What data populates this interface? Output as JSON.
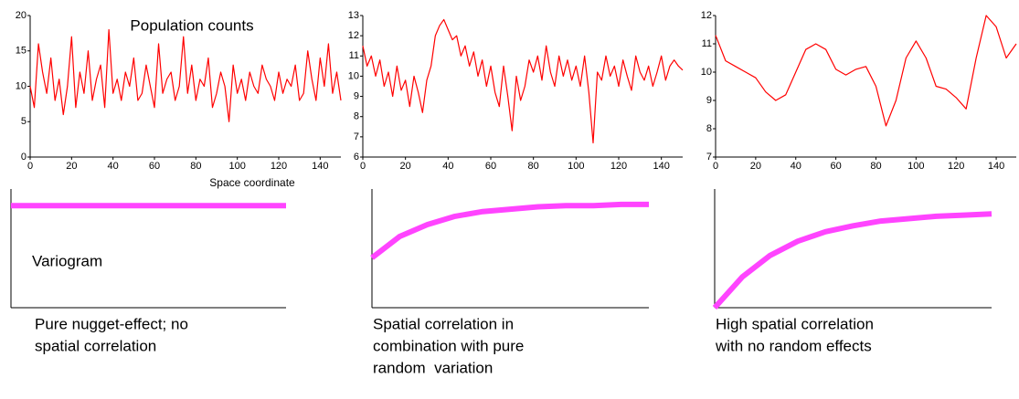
{
  "chart_data": [
    {
      "type": "line",
      "title": "Population counts",
      "xlabel": "Space coordinate",
      "color": "#ff0000",
      "x": [
        0,
        2,
        4,
        6,
        8,
        10,
        12,
        14,
        16,
        18,
        20,
        22,
        24,
        26,
        28,
        30,
        32,
        34,
        36,
        38,
        40,
        42,
        44,
        46,
        48,
        50,
        52,
        54,
        56,
        58,
        60,
        62,
        64,
        66,
        68,
        70,
        72,
        74,
        76,
        78,
        80,
        82,
        84,
        86,
        88,
        90,
        92,
        94,
        96,
        98,
        100,
        102,
        104,
        106,
        108,
        110,
        112,
        114,
        116,
        118,
        120,
        122,
        124,
        126,
        128,
        130,
        132,
        134,
        136,
        138,
        140,
        142,
        144,
        146,
        148,
        150
      ],
      "values": [
        10,
        7,
        16,
        12,
        9,
        14,
        8,
        11,
        6,
        10,
        17,
        7,
        12,
        9,
        15,
        8,
        11,
        13,
        7,
        18,
        9,
        11,
        8,
        12,
        10,
        14,
        8,
        9,
        13,
        10,
        7,
        16,
        9,
        11,
        12,
        8,
        10,
        17,
        9,
        13,
        8,
        11,
        10,
        14,
        7,
        9,
        12,
        10,
        5,
        13,
        9,
        11,
        8,
        12,
        10,
        9,
        13,
        11,
        10,
        8,
        12,
        9,
        11,
        10,
        13,
        8,
        9,
        15,
        11,
        8,
        14,
        10,
        16,
        9,
        12,
        8
      ],
      "xlim": [
        0,
        150
      ],
      "xticks": [
        0,
        20,
        40,
        60,
        80,
        100,
        120,
        140
      ],
      "ylim": [
        0,
        20
      ],
      "yticks": [
        0,
        5,
        10,
        15,
        20
      ]
    },
    {
      "type": "line",
      "color": "#ff0000",
      "x": [
        0,
        2,
        4,
        6,
        8,
        10,
        12,
        14,
        16,
        18,
        20,
        22,
        24,
        26,
        28,
        30,
        32,
        34,
        36,
        38,
        40,
        42,
        44,
        46,
        48,
        50,
        52,
        54,
        56,
        58,
        60,
        62,
        64,
        66,
        68,
        70,
        72,
        74,
        76,
        78,
        80,
        82,
        84,
        86,
        88,
        90,
        92,
        94,
        96,
        98,
        100,
        102,
        104,
        106,
        108,
        110,
        112,
        114,
        116,
        118,
        120,
        122,
        124,
        126,
        128,
        130,
        132,
        134,
        136,
        138,
        140,
        142,
        144,
        146,
        148,
        150
      ],
      "values": [
        11.5,
        10.5,
        11,
        10,
        10.8,
        9.5,
        10.2,
        9,
        10.5,
        9.3,
        9.8,
        8.5,
        10,
        9.2,
        8.2,
        9.8,
        10.5,
        12,
        12.5,
        12.8,
        12.3,
        11.8,
        12,
        11,
        11.5,
        10.5,
        11.2,
        10,
        10.8,
        9.5,
        10.5,
        9.2,
        8.5,
        10.5,
        9,
        7.3,
        10,
        8.8,
        9.5,
        10.8,
        10.2,
        11,
        9.8,
        11.5,
        10.2,
        9.5,
        11,
        10,
        10.8,
        9.8,
        10.5,
        9.5,
        11,
        9.2,
        6.7,
        10.2,
        9.8,
        11,
        10,
        10.5,
        9.5,
        10.8,
        10,
        9.3,
        11,
        10.2,
        9.8,
        10.5,
        9.5,
        10.2,
        11,
        9.8,
        10.5,
        10.8,
        10.5,
        10.3
      ],
      "xlim": [
        0,
        150
      ],
      "xticks": [
        0,
        20,
        40,
        60,
        80,
        100,
        120,
        140
      ],
      "ylim": [
        6,
        13
      ],
      "yticks": [
        6,
        7,
        8,
        9,
        10,
        11,
        12,
        13
      ]
    },
    {
      "type": "line",
      "color": "#ff0000",
      "x": [
        0,
        5,
        10,
        15,
        20,
        25,
        30,
        35,
        40,
        45,
        50,
        55,
        60,
        65,
        70,
        75,
        80,
        85,
        90,
        95,
        100,
        105,
        110,
        115,
        120,
        125,
        130,
        135,
        140,
        145,
        150
      ],
      "values": [
        11.3,
        10.4,
        10.2,
        10,
        9.8,
        9.3,
        9,
        9.2,
        10,
        10.8,
        11,
        10.8,
        10.1,
        9.9,
        10.1,
        10.2,
        9.5,
        8.1,
        9,
        10.5,
        11.1,
        10.5,
        9.5,
        9.4,
        9.1,
        8.7,
        10.5,
        12,
        11.6,
        10.5,
        11
      ],
      "xlim": [
        0,
        150
      ],
      "xticks": [
        0,
        20,
        40,
        60,
        80,
        100,
        120,
        140
      ],
      "ylim": [
        7,
        12
      ],
      "yticks": [
        7,
        8,
        9,
        10,
        11,
        12
      ]
    },
    {
      "type": "line",
      "annotation": "Variogram",
      "caption": [
        "Pure nugget-effect; no",
        "spatial correlation"
      ],
      "color": "#ff44ff",
      "x": [
        0,
        0.1,
        0.2,
        0.3,
        0.4,
        0.5,
        0.6,
        0.7,
        0.8,
        0.9,
        1
      ],
      "values": [
        0.86,
        0.86,
        0.86,
        0.86,
        0.86,
        0.86,
        0.86,
        0.86,
        0.86,
        0.86,
        0.86
      ],
      "xlim": [
        0,
        1
      ],
      "ylim": [
        0,
        1
      ]
    },
    {
      "type": "line",
      "caption": [
        "Spatial correlation in",
        "combination with pure",
        "random  variation"
      ],
      "color": "#ff44ff",
      "x": [
        0,
        0.1,
        0.2,
        0.3,
        0.4,
        0.5,
        0.6,
        0.7,
        0.8,
        0.9,
        1
      ],
      "values": [
        0.42,
        0.6,
        0.7,
        0.77,
        0.81,
        0.83,
        0.85,
        0.86,
        0.86,
        0.87,
        0.87
      ],
      "xlim": [
        0,
        1
      ],
      "ylim": [
        0,
        1
      ]
    },
    {
      "type": "line",
      "caption": [
        "High spatial correlation",
        "with no random effects"
      ],
      "color": "#ff44ff",
      "x": [
        0,
        0.1,
        0.2,
        0.3,
        0.4,
        0.5,
        0.6,
        0.7,
        0.8,
        0.9,
        1
      ],
      "values": [
        0,
        0.26,
        0.44,
        0.56,
        0.64,
        0.69,
        0.73,
        0.75,
        0.77,
        0.78,
        0.79
      ],
      "xlim": [
        0,
        1
      ],
      "ylim": [
        0,
        1
      ]
    }
  ]
}
